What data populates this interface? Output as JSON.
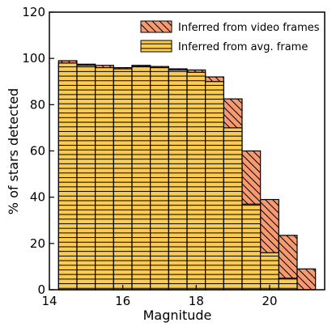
{
  "chart_data": {
    "type": "bar",
    "xlabel": "Magnitude",
    "ylabel": "% of stars detected",
    "xlim": [
      14,
      21.5
    ],
    "ylim": [
      0,
      120
    ],
    "xticks": [
      14,
      16,
      18,
      20
    ],
    "yticks": [
      0,
      20,
      40,
      60,
      80,
      100,
      120
    ],
    "bin_edges": [
      14.25,
      14.75,
      15.25,
      15.75,
      16.25,
      16.75,
      17.25,
      17.75,
      18.25,
      18.75,
      19.25,
      19.75,
      20.25,
      20.75,
      21.25
    ],
    "legend_position": "top-right",
    "series": [
      {
        "name": "Inferred from video frames",
        "color": "#f79a70",
        "hatch": "backslash",
        "values": [
          99,
          97.5,
          97,
          96,
          97,
          96.5,
          95.5,
          95,
          92,
          82.5,
          60,
          39,
          23.5,
          9
        ]
      },
      {
        "name": "Inferred from avg. frame",
        "color": "#fccc4f",
        "hatch": "horizontal",
        "values": [
          98,
          97,
          96,
          95.5,
          96.5,
          96,
          95,
          94,
          90,
          70,
          37,
          16,
          5,
          0
        ]
      }
    ]
  }
}
